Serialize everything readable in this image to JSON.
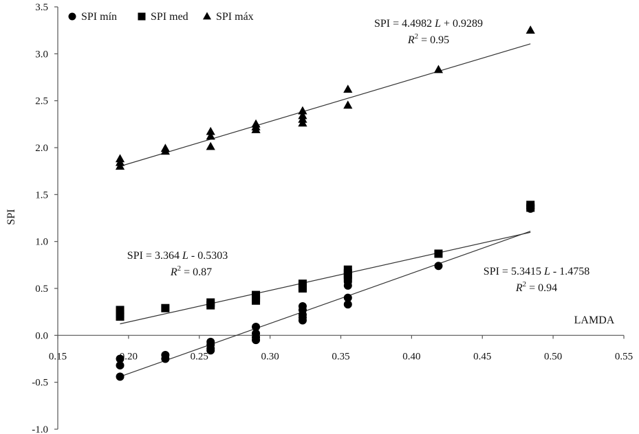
{
  "chart_data": {
    "type": "scatter",
    "title": "",
    "xlabel": "LAMDA",
    "ylabel": "SPI",
    "xlim": [
      0.15,
      0.55
    ],
    "ylim": [
      -1.0,
      3.5
    ],
    "x_ticks": [
      "0.15",
      "0.20",
      "0.25",
      "0.30",
      "0.35",
      "0.40",
      "0.45",
      "0.50",
      "0.55"
    ],
    "y_ticks": [
      "-1.0",
      "-0.5",
      "0.0",
      "0.5",
      "1.0",
      "1.5",
      "2.0",
      "2.5",
      "3.0",
      "3.5"
    ],
    "grid": false,
    "legend_position": "top-left",
    "series": [
      {
        "name": "SPI mín",
        "marker": "circle",
        "points": [
          [
            0.194,
            -0.25
          ],
          [
            0.194,
            -0.32
          ],
          [
            0.194,
            -0.44
          ],
          [
            0.226,
            -0.21
          ],
          [
            0.226,
            -0.25
          ],
          [
            0.258,
            -0.07
          ],
          [
            0.258,
            -0.1
          ],
          [
            0.258,
            -0.14
          ],
          [
            0.258,
            -0.16
          ],
          [
            0.29,
            0.09
          ],
          [
            0.29,
            0.02
          ],
          [
            0.29,
            -0.02
          ],
          [
            0.29,
            -0.05
          ],
          [
            0.323,
            0.31
          ],
          [
            0.323,
            0.27
          ],
          [
            0.323,
            0.22
          ],
          [
            0.323,
            0.19
          ],
          [
            0.323,
            0.16
          ],
          [
            0.355,
            0.61
          ],
          [
            0.355,
            0.57
          ],
          [
            0.355,
            0.53
          ],
          [
            0.355,
            0.4
          ],
          [
            0.355,
            0.33
          ],
          [
            0.419,
            0.74
          ],
          [
            0.484,
            1.35
          ],
          [
            0.484,
            1.38
          ]
        ],
        "fit": {
          "equation": "SPI = 5.3415 L - 1.4758",
          "r2": "R2 = 0.94",
          "slope": 5.3415,
          "intercept": -1.4758
        }
      },
      {
        "name": "SPI med",
        "marker": "square",
        "points": [
          [
            0.194,
            0.27
          ],
          [
            0.194,
            0.23
          ],
          [
            0.194,
            0.2
          ],
          [
            0.226,
            0.29
          ],
          [
            0.258,
            0.35
          ],
          [
            0.258,
            0.32
          ],
          [
            0.29,
            0.43
          ],
          [
            0.29,
            0.4
          ],
          [
            0.29,
            0.37
          ],
          [
            0.323,
            0.55
          ],
          [
            0.323,
            0.52
          ],
          [
            0.323,
            0.5
          ],
          [
            0.355,
            0.7
          ],
          [
            0.355,
            0.66
          ],
          [
            0.355,
            0.62
          ],
          [
            0.419,
            0.87
          ],
          [
            0.484,
            1.39
          ],
          [
            0.484,
            1.36
          ]
        ],
        "fit": {
          "equation": "SPI = 3.364 L - 0.5303",
          "r2": "R2 = 0.87",
          "slope": 3.364,
          "intercept": -0.5303
        }
      },
      {
        "name": "SPI máx",
        "marker": "triangle",
        "points": [
          [
            0.194,
            1.88
          ],
          [
            0.194,
            1.84
          ],
          [
            0.194,
            1.8
          ],
          [
            0.226,
            1.99
          ],
          [
            0.226,
            1.96
          ],
          [
            0.258,
            2.17
          ],
          [
            0.258,
            2.12
          ],
          [
            0.258,
            2.01
          ],
          [
            0.29,
            2.25
          ],
          [
            0.29,
            2.22
          ],
          [
            0.29,
            2.19
          ],
          [
            0.323,
            2.39
          ],
          [
            0.323,
            2.34
          ],
          [
            0.323,
            2.3
          ],
          [
            0.323,
            2.26
          ],
          [
            0.355,
            2.62
          ],
          [
            0.355,
            2.45
          ],
          [
            0.419,
            2.83
          ],
          [
            0.484,
            3.25
          ]
        ],
        "fit": {
          "equation": "SPI = 4.4982 L + 0.9289",
          "r2": "R2 = 0.95",
          "slope": 4.4982,
          "intercept": 0.9289
        }
      }
    ]
  }
}
